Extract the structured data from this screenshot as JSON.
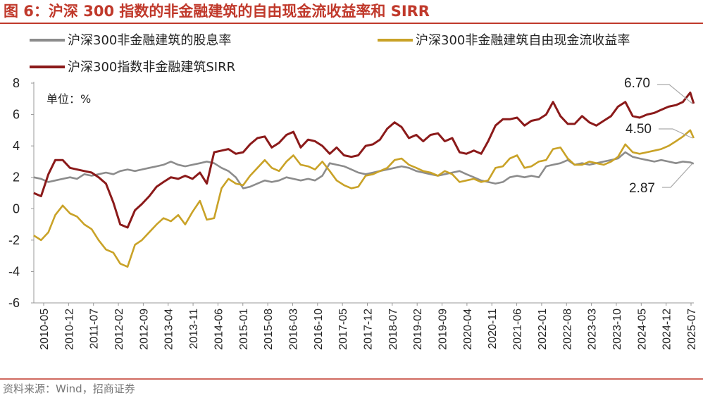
{
  "chart_data": {
    "type": "line",
    "title": "图 6：沪深 300 指数的非金融建筑的自由现金流收益率和 SIRR",
    "unit_label": "单位：%",
    "source": "资料来源：Wind，招商证券",
    "ylim": [
      -6,
      8
    ],
    "yticks": [
      "8",
      "6",
      "4",
      "2",
      "0",
      "-2",
      "-4",
      "-6"
    ],
    "ytick_values": [
      8,
      6,
      4,
      2,
      0,
      -2,
      -4,
      -6
    ],
    "x_ticks": [
      "2010-05",
      "2010-12",
      "2011-07",
      "2012-02",
      "2012-09",
      "2013-04",
      "2013-11",
      "2014-06",
      "2015-01",
      "2015-08",
      "2016-03",
      "2016-10",
      "2017-05",
      "2017-12",
      "2018-07",
      "2019-02",
      "2019-09",
      "2020-04",
      "2020-11",
      "2021-06",
      "2022-01",
      "2022-08",
      "2023-03",
      "2023-10",
      "2024-05",
      "2024-12",
      "2025-07"
    ],
    "x_range": [
      2010.333,
      2025.583
    ],
    "series": [
      {
        "name": "沪深300非金融建筑的股息率",
        "color": "#8c8c8c",
        "x": [
          2010.33,
          2010.5,
          2010.67,
          2010.83,
          2011.0,
          2011.17,
          2011.33,
          2011.5,
          2011.67,
          2011.83,
          2012.0,
          2012.17,
          2012.33,
          2012.5,
          2012.67,
          2012.83,
          2013.0,
          2013.17,
          2013.33,
          2013.5,
          2013.67,
          2013.83,
          2014.0,
          2014.17,
          2014.33,
          2014.5,
          2014.67,
          2014.83,
          2015.0,
          2015.17,
          2015.33,
          2015.5,
          2015.67,
          2015.83,
          2016.0,
          2016.17,
          2016.33,
          2016.5,
          2016.67,
          2016.83,
          2017.0,
          2017.17,
          2017.33,
          2017.5,
          2017.67,
          2017.83,
          2018.0,
          2018.17,
          2018.33,
          2018.5,
          2018.67,
          2018.83,
          2019.0,
          2019.17,
          2019.33,
          2019.5,
          2019.67,
          2019.83,
          2020.0,
          2020.17,
          2020.33,
          2020.5,
          2020.67,
          2020.83,
          2021.0,
          2021.17,
          2021.33,
          2021.5,
          2021.67,
          2021.83,
          2022.0,
          2022.17,
          2022.33,
          2022.5,
          2022.67,
          2022.83,
          2023.0,
          2023.17,
          2023.33,
          2023.5,
          2023.67,
          2023.83,
          2024.0,
          2024.17,
          2024.33,
          2024.5,
          2024.67,
          2024.83,
          2025.0,
          2025.17,
          2025.33,
          2025.5,
          2025.58
        ],
        "values": [
          2.0,
          1.9,
          1.7,
          1.8,
          1.9,
          2.0,
          1.9,
          2.2,
          2.1,
          2.2,
          2.3,
          2.2,
          2.4,
          2.5,
          2.4,
          2.5,
          2.6,
          2.7,
          2.8,
          3.0,
          2.8,
          2.7,
          2.8,
          2.9,
          3.0,
          2.9,
          2.6,
          2.4,
          2.0,
          1.3,
          1.4,
          1.6,
          1.8,
          1.7,
          1.8,
          2.0,
          1.9,
          1.8,
          1.9,
          1.8,
          2.1,
          2.9,
          2.8,
          2.7,
          2.5,
          2.3,
          2.2,
          2.3,
          2.4,
          2.5,
          2.6,
          2.7,
          2.6,
          2.4,
          2.3,
          2.2,
          2.1,
          2.2,
          2.3,
          2.4,
          2.2,
          2.0,
          1.8,
          1.7,
          1.6,
          1.7,
          2.0,
          2.1,
          2.0,
          2.1,
          2.0,
          2.7,
          2.8,
          2.9,
          3.1,
          2.8,
          2.9,
          2.8,
          2.9,
          3.0,
          3.1,
          3.2,
          3.6,
          3.3,
          3.2,
          3.1,
          3.0,
          3.1,
          3.0,
          2.9,
          3.0,
          2.95,
          2.87
        ]
      },
      {
        "name": "沪深300非金融建筑自由现金流收益率",
        "color": "#c9a227",
        "x": [
          2010.33,
          2010.5,
          2010.67,
          2010.83,
          2011.0,
          2011.17,
          2011.33,
          2011.5,
          2011.67,
          2011.83,
          2012.0,
          2012.17,
          2012.33,
          2012.5,
          2012.67,
          2012.83,
          2013.0,
          2013.17,
          2013.33,
          2013.5,
          2013.67,
          2013.83,
          2014.0,
          2014.17,
          2014.33,
          2014.5,
          2014.67,
          2014.83,
          2015.0,
          2015.17,
          2015.33,
          2015.5,
          2015.67,
          2015.83,
          2016.0,
          2016.17,
          2016.33,
          2016.5,
          2016.67,
          2016.83,
          2017.0,
          2017.17,
          2017.33,
          2017.5,
          2017.67,
          2017.83,
          2018.0,
          2018.17,
          2018.33,
          2018.5,
          2018.67,
          2018.83,
          2019.0,
          2019.17,
          2019.33,
          2019.5,
          2019.67,
          2019.83,
          2020.0,
          2020.17,
          2020.33,
          2020.5,
          2020.67,
          2020.83,
          2021.0,
          2021.17,
          2021.33,
          2021.5,
          2021.67,
          2021.83,
          2022.0,
          2022.17,
          2022.33,
          2022.5,
          2022.67,
          2022.83,
          2023.0,
          2023.17,
          2023.33,
          2023.5,
          2023.67,
          2023.83,
          2024.0,
          2024.17,
          2024.33,
          2024.5,
          2024.67,
          2024.83,
          2025.0,
          2025.17,
          2025.33,
          2025.5,
          2025.58
        ],
        "values": [
          -1.7,
          -2.0,
          -1.5,
          -0.4,
          0.2,
          -0.3,
          -0.5,
          -1.0,
          -1.3,
          -2.0,
          -2.6,
          -2.8,
          -3.5,
          -3.7,
          -2.3,
          -2.0,
          -1.5,
          -1.0,
          -0.6,
          -0.8,
          -0.4,
          -1.0,
          -0.2,
          0.5,
          -0.7,
          -0.6,
          1.3,
          1.9,
          1.6,
          1.5,
          2.1,
          2.6,
          3.1,
          2.6,
          2.4,
          3.0,
          3.4,
          2.8,
          2.7,
          2.5,
          3.0,
          2.4,
          1.8,
          1.5,
          1.3,
          1.4,
          2.1,
          2.2,
          2.4,
          2.6,
          3.1,
          3.2,
          2.8,
          2.6,
          2.4,
          2.3,
          2.1,
          2.4,
          2.2,
          1.7,
          1.8,
          1.9,
          1.7,
          1.8,
          2.6,
          2.7,
          3.2,
          3.4,
          2.6,
          2.7,
          3.0,
          3.1,
          3.8,
          3.9,
          3.2,
          2.8,
          2.8,
          3.0,
          2.9,
          2.8,
          3.0,
          3.3,
          4.1,
          3.6,
          3.5,
          3.6,
          3.7,
          3.8,
          4.0,
          4.3,
          4.6,
          5.0,
          4.5
        ]
      },
      {
        "name": "沪深300指数非金融建筑SIRR",
        "color": "#8b1a1a",
        "x": [
          2010.33,
          2010.5,
          2010.67,
          2010.83,
          2011.0,
          2011.17,
          2011.33,
          2011.5,
          2011.67,
          2011.83,
          2012.0,
          2012.17,
          2012.33,
          2012.5,
          2012.67,
          2012.83,
          2013.0,
          2013.17,
          2013.33,
          2013.5,
          2013.67,
          2013.83,
          2014.0,
          2014.17,
          2014.33,
          2014.5,
          2014.67,
          2014.83,
          2015.0,
          2015.17,
          2015.33,
          2015.5,
          2015.67,
          2015.83,
          2016.0,
          2016.17,
          2016.33,
          2016.5,
          2016.67,
          2016.83,
          2017.0,
          2017.17,
          2017.33,
          2017.5,
          2017.67,
          2017.83,
          2018.0,
          2018.17,
          2018.33,
          2018.5,
          2018.67,
          2018.83,
          2019.0,
          2019.17,
          2019.33,
          2019.5,
          2019.67,
          2019.83,
          2020.0,
          2020.17,
          2020.33,
          2020.5,
          2020.67,
          2020.83,
          2021.0,
          2021.17,
          2021.33,
          2021.5,
          2021.67,
          2021.83,
          2022.0,
          2022.17,
          2022.33,
          2022.5,
          2022.67,
          2022.83,
          2023.0,
          2023.17,
          2023.33,
          2023.5,
          2023.67,
          2023.83,
          2024.0,
          2024.17,
          2024.33,
          2024.5,
          2024.67,
          2024.83,
          2025.0,
          2025.17,
          2025.33,
          2025.5,
          2025.58
        ],
        "values": [
          1.0,
          0.8,
          2.2,
          3.1,
          3.1,
          2.6,
          2.5,
          2.4,
          2.3,
          2.0,
          1.6,
          0.4,
          -1.0,
          -1.2,
          -0.1,
          0.3,
          0.8,
          1.4,
          1.7,
          2.0,
          1.9,
          2.1,
          1.9,
          2.3,
          1.6,
          3.6,
          3.7,
          3.8,
          3.5,
          3.6,
          4.1,
          4.5,
          4.6,
          3.9,
          4.2,
          4.7,
          4.9,
          3.9,
          4.4,
          4.3,
          4.0,
          3.5,
          3.9,
          3.4,
          3.3,
          3.4,
          4.0,
          4.1,
          4.4,
          5.1,
          5.5,
          5.2,
          4.5,
          4.7,
          4.3,
          4.7,
          4.8,
          4.3,
          4.5,
          3.6,
          3.5,
          3.7,
          3.5,
          4.3,
          5.3,
          5.7,
          5.7,
          5.8,
          5.3,
          5.6,
          5.7,
          6.0,
          6.8,
          5.9,
          5.4,
          5.4,
          5.9,
          5.5,
          5.3,
          5.6,
          5.9,
          6.5,
          6.8,
          5.9,
          5.8,
          6.0,
          6.1,
          6.3,
          6.5,
          6.6,
          6.8,
          7.4,
          6.7
        ]
      }
    ],
    "annotations": [
      {
        "text": "6.70",
        "series": 2,
        "value": 6.7
      },
      {
        "text": "4.50",
        "series": 1,
        "value": 4.5
      },
      {
        "text": "2.87",
        "series": 0,
        "value": 2.87
      }
    ]
  }
}
